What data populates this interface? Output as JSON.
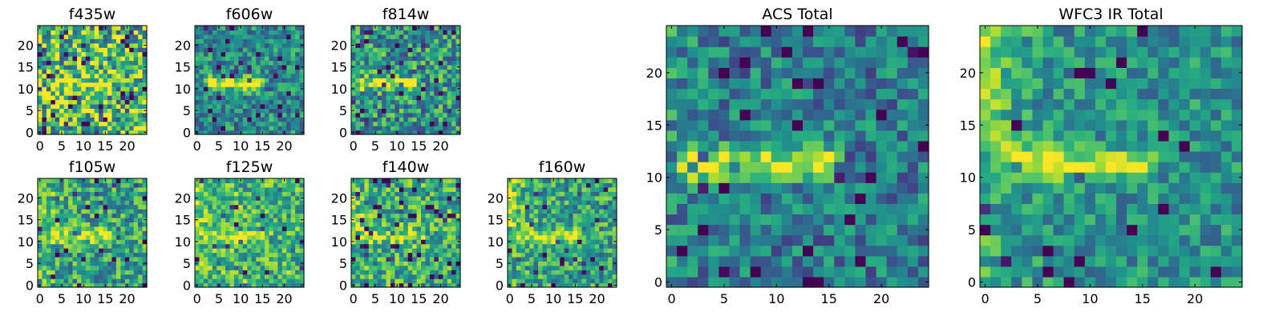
{
  "chart_data": {
    "type": "heatmap",
    "colormap": "viridis",
    "grid_size": 25,
    "panels": [
      {
        "id": "f435w",
        "title": "f435w",
        "xticks": [
          0,
          5,
          10,
          15,
          20
        ],
        "yticks": [
          0,
          5,
          10,
          15,
          20
        ],
        "xlim": [
          0,
          24
        ],
        "ylim": [
          0,
          24
        ],
        "source_count_knot": "bright horizontal band near y≈12, x≈3-15, very noisy"
      },
      {
        "id": "f606w",
        "title": "f606w",
        "xticks": [
          0,
          5,
          10,
          15,
          20
        ],
        "yticks": [
          0,
          5,
          10,
          15,
          20
        ],
        "xlim": [
          0,
          24
        ],
        "ylim": [
          0,
          24
        ]
      },
      {
        "id": "f814w",
        "title": "f814w",
        "xticks": [
          0,
          5,
          10,
          15,
          20
        ],
        "yticks": [
          0,
          5,
          10,
          15,
          20
        ],
        "xlim": [
          0,
          24
        ],
        "ylim": [
          0,
          24
        ]
      },
      {
        "id": "f105w",
        "title": "f105w",
        "xticks": [
          0,
          5,
          10,
          15,
          20
        ],
        "yticks": [
          0,
          5,
          10,
          15,
          20
        ],
        "xlim": [
          0,
          24
        ],
        "ylim": [
          0,
          24
        ]
      },
      {
        "id": "f125w",
        "title": "f125w",
        "xticks": [
          0,
          5,
          10,
          15,
          20
        ],
        "yticks": [
          0,
          5,
          10,
          15,
          20
        ],
        "xlim": [
          0,
          24
        ],
        "ylim": [
          0,
          24
        ]
      },
      {
        "id": "f140w",
        "title": "f140w",
        "xticks": [
          0,
          5,
          10,
          15,
          20
        ],
        "yticks": [
          0,
          5,
          10,
          15,
          20
        ],
        "xlim": [
          0,
          24
        ],
        "ylim": [
          0,
          24
        ]
      },
      {
        "id": "f160w",
        "title": "f160w",
        "xticks": [
          0,
          5,
          10,
          15,
          20
        ],
        "yticks": [
          0,
          5,
          10,
          15,
          20
        ],
        "xlim": [
          0,
          24
        ],
        "ylim": [
          0,
          24
        ]
      },
      {
        "id": "acs",
        "title": "ACS Total",
        "xticks": [
          0,
          5,
          10,
          15,
          20
        ],
        "yticks": [
          0,
          5,
          10,
          15,
          20
        ],
        "xlim": [
          0,
          24
        ],
        "ylim": [
          0,
          24
        ]
      },
      {
        "id": "wfc3",
        "title": "WFC3 IR Total",
        "xticks": [
          0,
          5,
          10,
          15,
          20
        ],
        "yticks": [
          0,
          5,
          10,
          15,
          20
        ],
        "xlim": [
          0,
          24
        ],
        "ylim": [
          0,
          24
        ]
      }
    ]
  }
}
